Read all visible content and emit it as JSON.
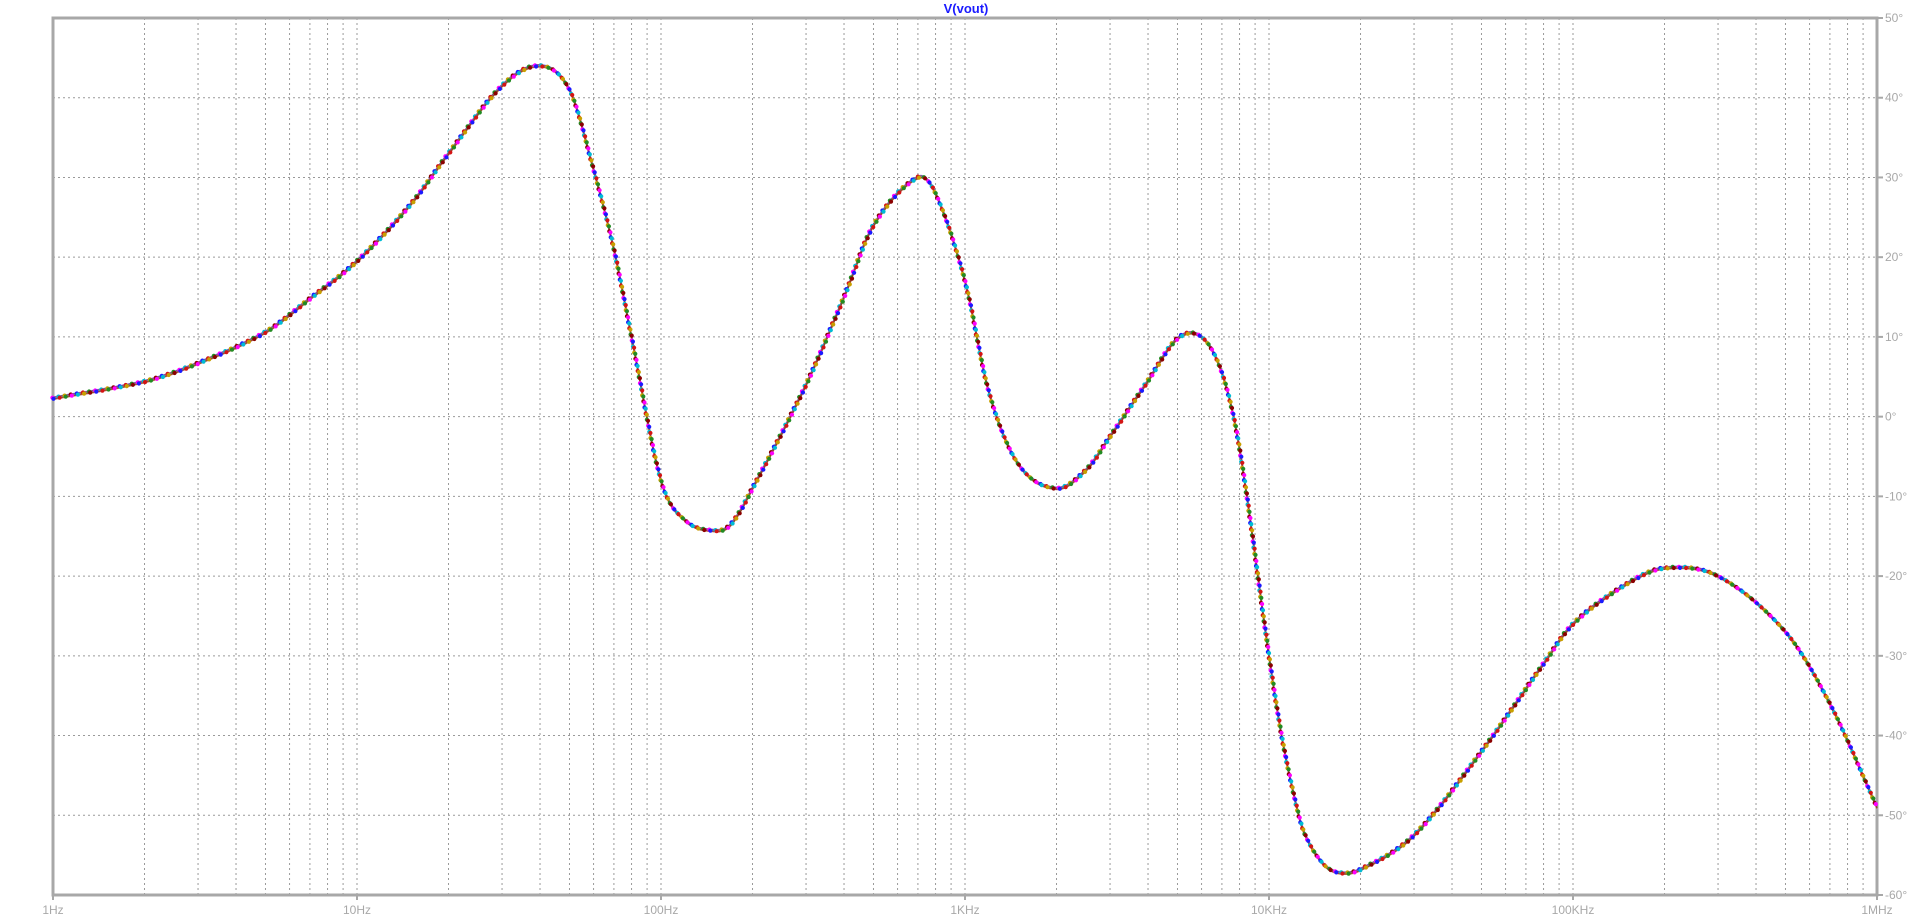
{
  "chart_data": {
    "type": "line",
    "title": "V(vout)",
    "x_scale": "log",
    "xlim": [
      1,
      1000000
    ],
    "ylim": [
      -60,
      50
    ],
    "grid": true,
    "x_ticks": [
      {
        "value": 1,
        "label": "1Hz"
      },
      {
        "value": 10,
        "label": "10Hz"
      },
      {
        "value": 100,
        "label": "100Hz"
      },
      {
        "value": 1000,
        "label": "1KHz"
      },
      {
        "value": 10000,
        "label": "10KHz"
      },
      {
        "value": 100000,
        "label": "100KHz"
      },
      {
        "value": 1000000,
        "label": "1MHz"
      }
    ],
    "y_ticks": [
      {
        "value": 50,
        "label": "50°"
      },
      {
        "value": 40,
        "label": "40°"
      },
      {
        "value": 30,
        "label": "30°"
      },
      {
        "value": 20,
        "label": "20°"
      },
      {
        "value": 10,
        "label": "10°"
      },
      {
        "value": 0,
        "label": "0°"
      },
      {
        "value": -10,
        "label": "-10°"
      },
      {
        "value": -20,
        "label": "-20°"
      },
      {
        "value": -30,
        "label": "-30°"
      },
      {
        "value": -40,
        "label": "-40°"
      },
      {
        "value": -50,
        "label": "-50°"
      },
      {
        "value": -60,
        "label": "-60°"
      }
    ],
    "series_colors": [
      "#1a1aff",
      "#d41414",
      "#228b22",
      "#ff00ff",
      "#00bcd4",
      "#c8a000",
      "#8b0000"
    ],
    "x": [
      1,
      2,
      3,
      5,
      7,
      10,
      15,
      20,
      30,
      40,
      50,
      60,
      70,
      80,
      100,
      120,
      150,
      170,
      200,
      300,
      400,
      500,
      700,
      800,
      1000,
      1200,
      1500,
      2000,
      2500,
      3000,
      4000,
      5000,
      6000,
      7000,
      8000,
      10000,
      11000,
      12000,
      13000,
      15000,
      17000,
      20000,
      30000,
      50000,
      80000,
      100000,
      150000,
      200000,
      300000,
      500000,
      700000,
      1000000
    ],
    "y": [
      2.3,
      4.4,
      6.7,
      10.6,
      14.8,
      19.5,
      26.6,
      33,
      41.5,
      44,
      41,
      31,
      21,
      10,
      -8,
      -13,
      -14.3,
      -13.5,
      -9,
      4,
      15,
      24,
      30,
      28,
      17,
      3,
      -6,
      -9,
      -6.7,
      -2.5,
      4.5,
      9.8,
      10,
      5.5,
      -4,
      -30,
      -40,
      -47,
      -52,
      -56,
      -57.2,
      -56.8,
      -52.5,
      -42,
      -31,
      -26,
      -21,
      -19,
      -20,
      -27,
      -36,
      -49
    ]
  }
}
